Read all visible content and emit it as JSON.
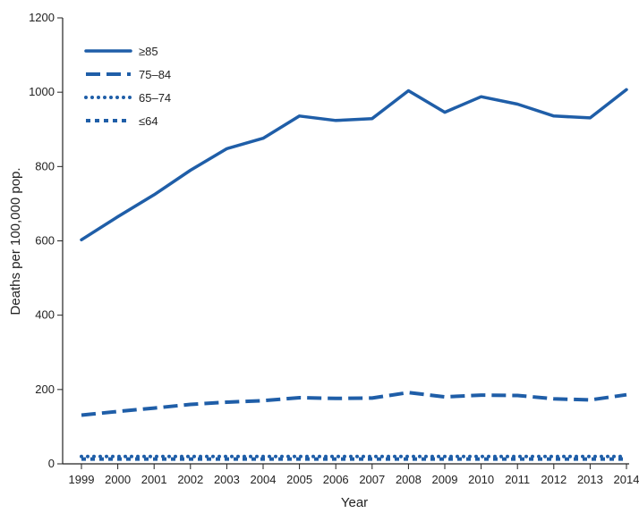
{
  "chart_data": {
    "type": "line",
    "title": "",
    "xlabel": "Year",
    "ylabel": "Deaths per 100,000 pop.",
    "x": [
      "1999",
      "2000",
      "2001",
      "2002",
      "2003",
      "2004",
      "2005",
      "2006",
      "2007",
      "2008",
      "2009",
      "2010",
      "2011",
      "2012",
      "2013",
      "2014"
    ],
    "ylim": [
      0,
      1200
    ],
    "yticks": [
      0,
      200,
      400,
      600,
      800,
      1000,
      1200
    ],
    "ytick_labels": [
      "0",
      "200",
      "400",
      "600",
      "800",
      "1000",
      "1200"
    ],
    "grid": false,
    "legend_position": "top-left",
    "series": [
      {
        "name": "≥85",
        "style": "solid",
        "color": "#1f5ea8",
        "values": [
          603,
          665,
          724,
          790,
          848,
          876,
          936,
          924,
          929,
          1004,
          946,
          988,
          968,
          936,
          931,
          1007
        ]
      },
      {
        "name": "75–84",
        "style": "dashed",
        "color": "#1f5ea8",
        "values": [
          131,
          141,
          150,
          160,
          166,
          170,
          178,
          176,
          177,
          192,
          180,
          185,
          184,
          175,
          172,
          186
        ]
      },
      {
        "name": "65–74",
        "style": "dotted",
        "color": "#1f5ea8",
        "values": [
          20,
          20,
          20,
          20,
          20,
          20,
          20,
          20,
          20,
          20,
          20,
          20,
          20,
          20,
          20,
          20
        ]
      },
      {
        "name": "≤64",
        "style": "square-dotted",
        "color": "#1f5ea8",
        "values": [
          13,
          13,
          13,
          13,
          13,
          13,
          13,
          13,
          13,
          13,
          13,
          13,
          13,
          13,
          13,
          13
        ]
      }
    ]
  }
}
